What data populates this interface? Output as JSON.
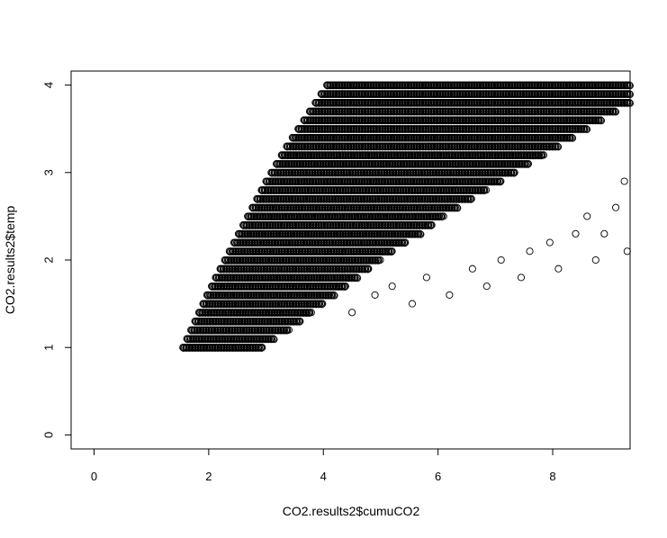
{
  "chart_data": {
    "type": "scatter",
    "title": "",
    "xlabel": "CO2.results2$cumuCO2",
    "ylabel": "CO2.results2$temp",
    "xlim": [
      -0.4,
      9.35
    ],
    "ylim": [
      -0.16,
      4.16
    ],
    "xticks": [
      0,
      2,
      4,
      6,
      8
    ],
    "yticks": [
      0,
      1,
      2,
      3,
      4
    ],
    "xtick_labels": [
      "0",
      "2",
      "4",
      "6",
      "8"
    ],
    "ytick_labels": [
      "0",
      "1",
      "2",
      "3",
      "4"
    ],
    "grid": false,
    "legend": "none",
    "marker": "open-circle",
    "point_color": "#000000",
    "temp_levels": [
      1.0,
      1.1,
      1.2,
      1.3,
      1.4,
      1.5,
      1.6,
      1.7,
      1.8,
      1.9,
      2.0,
      2.1,
      2.2,
      2.3,
      2.4,
      2.5,
      2.6,
      2.7,
      2.8,
      2.9,
      3.0,
      3.1,
      3.2,
      3.3,
      3.4,
      3.5,
      3.6,
      3.7,
      3.8,
      3.9,
      4.0
    ],
    "dense_band": {
      "x_start": [
        1.55,
        1.62,
        1.69,
        1.76,
        1.83,
        1.9,
        1.97,
        2.05,
        2.12,
        2.2,
        2.28,
        2.36,
        2.44,
        2.52,
        2.6,
        2.68,
        2.76,
        2.84,
        2.92,
        3.0,
        3.09,
        3.18,
        3.27,
        3.36,
        3.46,
        3.56,
        3.66,
        3.76,
        3.86,
        3.96,
        4.06
      ],
      "x_end": [
        2.95,
        3.15,
        3.4,
        3.6,
        3.8,
        4.0,
        4.2,
        4.4,
        4.6,
        4.8,
        5.0,
        5.2,
        5.45,
        5.7,
        5.9,
        6.1,
        6.35,
        6.6,
        6.85,
        7.1,
        7.35,
        7.6,
        7.85,
        8.1,
        8.35,
        8.6,
        8.85,
        9.1,
        9.35,
        9.35,
        9.35
      ]
    },
    "sparse_points": [
      {
        "x": 4.5,
        "y": 1.4
      },
      {
        "x": 4.9,
        "y": 1.6
      },
      {
        "x": 5.55,
        "y": 1.5
      },
      {
        "x": 5.2,
        "y": 1.7
      },
      {
        "x": 5.8,
        "y": 1.8
      },
      {
        "x": 6.2,
        "y": 1.6
      },
      {
        "x": 6.6,
        "y": 1.9
      },
      {
        "x": 6.85,
        "y": 1.7
      },
      {
        "x": 7.1,
        "y": 2.0
      },
      {
        "x": 7.45,
        "y": 1.8
      },
      {
        "x": 7.6,
        "y": 2.1
      },
      {
        "x": 8.1,
        "y": 1.9
      },
      {
        "x": 7.95,
        "y": 2.2
      },
      {
        "x": 8.4,
        "y": 2.3
      },
      {
        "x": 8.75,
        "y": 2.0
      },
      {
        "x": 8.9,
        "y": 2.3
      },
      {
        "x": 9.3,
        "y": 2.1
      },
      {
        "x": 8.6,
        "y": 2.5
      },
      {
        "x": 9.1,
        "y": 2.6
      },
      {
        "x": 9.25,
        "y": 2.9
      }
    ]
  }
}
